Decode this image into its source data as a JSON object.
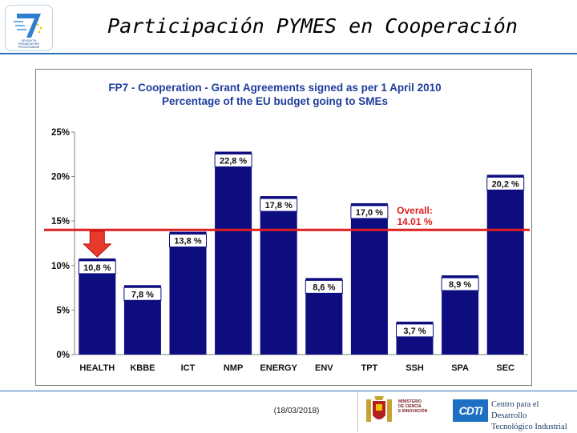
{
  "header": {
    "title": "Participación PYMES en Cooperación",
    "logo_lines": [
      "SEVENTH",
      "FRAMEWORK",
      "PROGRAMME"
    ]
  },
  "footer": {
    "date": "(18/03/2018)",
    "ministry_lines": [
      "MINISTERIO",
      "DE CIENCIA",
      "E INNOVACIÓN"
    ],
    "cdti_mark": "CDTI",
    "cdti_lines": [
      "Centro para el Desarrollo",
      "Tecnológico Industrial"
    ]
  },
  "colors": {
    "bar": "#0d0d80",
    "bar_label_bg": "#ffffff",
    "title_text": "#1f3d9c",
    "overall_line": "#e02020",
    "overall_text": "#e02020",
    "arrow": "#e83a2a"
  },
  "chart_data": {
    "type": "bar",
    "title_lines": [
      "FP7 - Cooperation - Grant Agreements signed as per 1 April 2010",
      "Percentage of the EU budget going to SMEs"
    ],
    "categories": [
      "HEALTH",
      "KBBE",
      "ICT",
      "NMP",
      "ENERGY",
      "ENV",
      "TPT",
      "SSH",
      "SPA",
      "SEC"
    ],
    "values": [
      10.8,
      7.8,
      13.8,
      22.8,
      17.8,
      8.6,
      17.0,
      3.7,
      8.9,
      20.2
    ],
    "value_labels": [
      "10,8 %",
      "7,8 %",
      "13,8 %",
      "22,8 %",
      "17,8 %",
      "8,6 %",
      "17,0 %",
      "3,7 %",
      "8,9 %",
      "20,2 %"
    ],
    "ylim": [
      0,
      25
    ],
    "yticks": [
      0,
      5,
      10,
      15,
      20,
      25
    ],
    "ytick_labels": [
      "0%",
      "5%",
      "10%",
      "15%",
      "20%",
      "25%"
    ],
    "grid": false,
    "reference_line": {
      "value": 14.01,
      "label_lines": [
        "Overall:",
        "14.01 %"
      ]
    },
    "highlight_category": "HEALTH"
  }
}
